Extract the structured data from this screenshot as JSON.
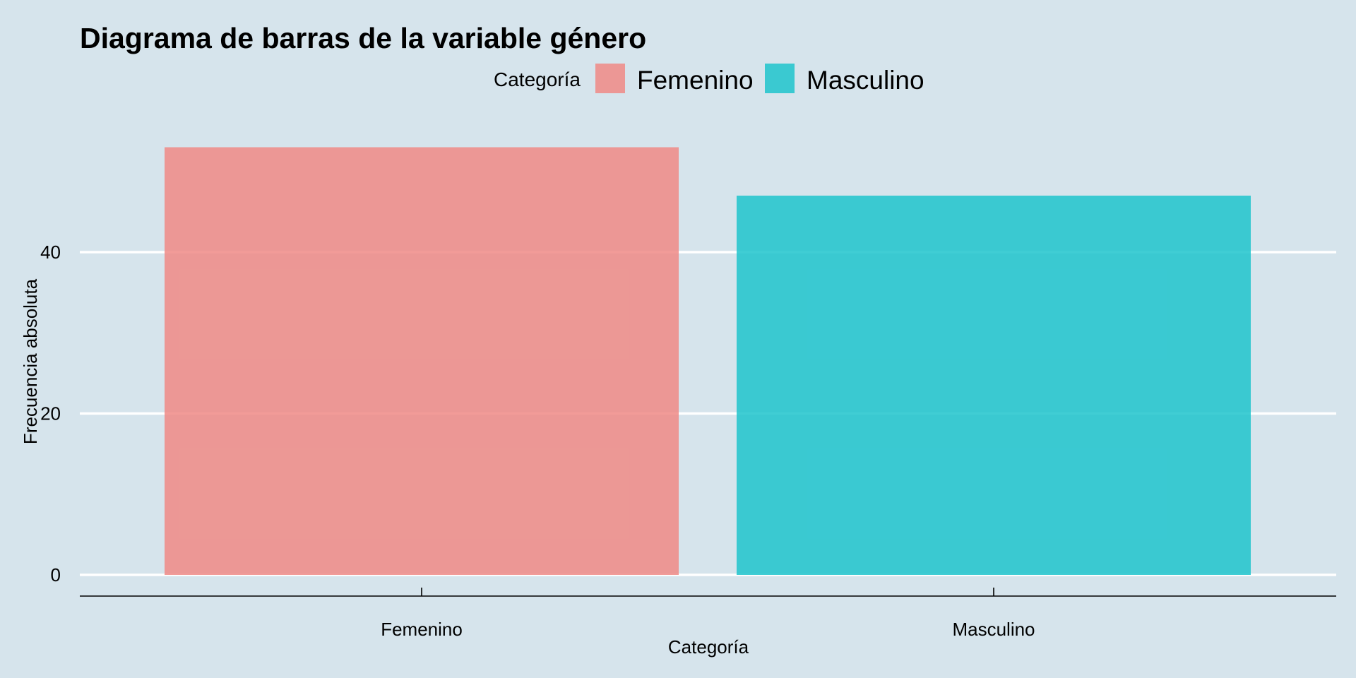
{
  "chart_data": {
    "type": "bar",
    "title": "Diagrama de barras de la variable género",
    "xlabel": "Categoría",
    "ylabel": "Frecuencia absoluta",
    "categories": [
      "Femenino",
      "Masculino"
    ],
    "values": [
      53,
      47
    ],
    "colors": [
      "#f08a86",
      "#1ec4cd"
    ],
    "bar_opacity": 0.85,
    "ylim": [
      0,
      58
    ],
    "yticks": [
      0,
      20,
      40
    ],
    "ytick_labels": [
      "0",
      "20",
      "40"
    ],
    "grid": true,
    "grid_color": "#ffffff",
    "background_color": "#d6e4ec",
    "legend": {
      "title": "Categoría",
      "position": "top",
      "entries": [
        "Femenino",
        "Masculino"
      ]
    }
  }
}
